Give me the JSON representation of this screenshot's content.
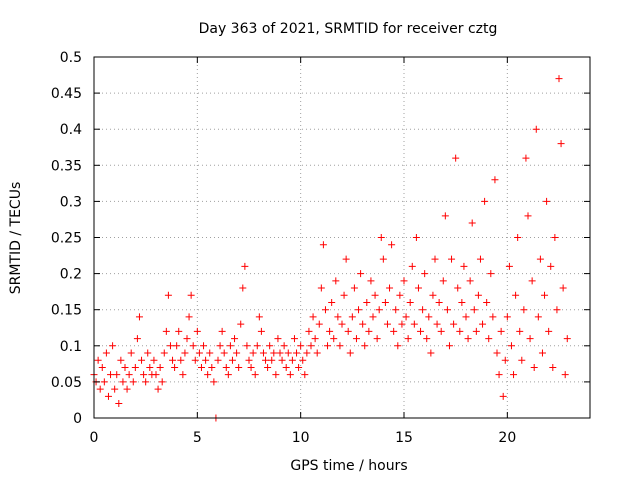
{
  "chart_data": {
    "type": "scatter",
    "title": "Day 363 of 2021, SRMTID for receiver cztg",
    "xlabel": "GPS time / hours",
    "ylabel": "SRMTID / TECUs",
    "xlim": [
      0,
      24
    ],
    "ylim": [
      0,
      0.5
    ],
    "xticks": [
      "0",
      "5",
      "10",
      "15",
      "20"
    ],
    "yticks": [
      "0",
      "0.05",
      "0.1",
      "0.15",
      "0.2",
      "0.25",
      "0.3",
      "0.35",
      "0.4",
      "0.45",
      "0.5"
    ],
    "grid": true,
    "marker": "+",
    "color": "#ff0000",
    "series": [
      {
        "points": [
          [
            0.0,
            0.06
          ],
          [
            0.1,
            0.05
          ],
          [
            0.2,
            0.08
          ],
          [
            0.3,
            0.04
          ],
          [
            0.4,
            0.07
          ],
          [
            0.5,
            0.05
          ],
          [
            0.6,
            0.09
          ],
          [
            0.7,
            0.03
          ],
          [
            0.8,
            0.06
          ],
          [
            0.9,
            0.1
          ],
          [
            1.0,
            0.04
          ],
          [
            1.1,
            0.06
          ],
          [
            1.2,
            0.02
          ],
          [
            1.3,
            0.08
          ],
          [
            1.4,
            0.05
          ],
          [
            1.5,
            0.07
          ],
          [
            1.6,
            0.04
          ],
          [
            1.7,
            0.06
          ],
          [
            1.8,
            0.09
          ],
          [
            1.9,
            0.05
          ],
          [
            2.0,
            0.07
          ],
          [
            2.1,
            0.11
          ],
          [
            2.2,
            0.14
          ],
          [
            2.3,
            0.08
          ],
          [
            2.4,
            0.06
          ],
          [
            2.5,
            0.05
          ],
          [
            2.6,
            0.09
          ],
          [
            2.7,
            0.07
          ],
          [
            2.8,
            0.06
          ],
          [
            2.9,
            0.08
          ],
          [
            3.0,
            0.06
          ],
          [
            3.1,
            0.04
          ],
          [
            3.2,
            0.07
          ],
          [
            3.3,
            0.05
          ],
          [
            3.4,
            0.09
          ],
          [
            3.5,
            0.12
          ],
          [
            3.6,
            0.17
          ],
          [
            3.7,
            0.1
          ],
          [
            3.8,
            0.08
          ],
          [
            3.9,
            0.07
          ],
          [
            4.0,
            0.1
          ],
          [
            4.1,
            0.12
          ],
          [
            4.2,
            0.08
          ],
          [
            4.3,
            0.06
          ],
          [
            4.4,
            0.09
          ],
          [
            4.5,
            0.11
          ],
          [
            4.6,
            0.14
          ],
          [
            4.7,
            0.17
          ],
          [
            4.8,
            0.1
          ],
          [
            4.9,
            0.08
          ],
          [
            5.0,
            0.12
          ],
          [
            5.1,
            0.09
          ],
          [
            5.2,
            0.07
          ],
          [
            5.3,
            0.1
          ],
          [
            5.4,
            0.08
          ],
          [
            5.5,
            0.06
          ],
          [
            5.6,
            0.09
          ],
          [
            5.7,
            0.07
          ],
          [
            5.8,
            0.05
          ],
          [
            5.9,
            0.0
          ],
          [
            6.0,
            0.08
          ],
          [
            6.1,
            0.1
          ],
          [
            6.2,
            0.12
          ],
          [
            6.3,
            0.09
          ],
          [
            6.4,
            0.07
          ],
          [
            6.5,
            0.06
          ],
          [
            6.6,
            0.1
          ],
          [
            6.7,
            0.08
          ],
          [
            6.8,
            0.11
          ],
          [
            6.9,
            0.09
          ],
          [
            7.0,
            0.07
          ],
          [
            7.1,
            0.13
          ],
          [
            7.2,
            0.18
          ],
          [
            7.3,
            0.21
          ],
          [
            7.4,
            0.1
          ],
          [
            7.5,
            0.08
          ],
          [
            7.6,
            0.07
          ],
          [
            7.7,
            0.09
          ],
          [
            7.8,
            0.06
          ],
          [
            7.9,
            0.1
          ],
          [
            8.0,
            0.14
          ],
          [
            8.1,
            0.12
          ],
          [
            8.2,
            0.09
          ],
          [
            8.3,
            0.08
          ],
          [
            8.4,
            0.07
          ],
          [
            8.5,
            0.1
          ],
          [
            8.6,
            0.08
          ],
          [
            8.7,
            0.09
          ],
          [
            8.8,
            0.06
          ],
          [
            8.9,
            0.11
          ],
          [
            9.0,
            0.09
          ],
          [
            9.1,
            0.08
          ],
          [
            9.2,
            0.1
          ],
          [
            9.3,
            0.07
          ],
          [
            9.4,
            0.09
          ],
          [
            9.5,
            0.06
          ],
          [
            9.6,
            0.08
          ],
          [
            9.7,
            0.11
          ],
          [
            9.8,
            0.09
          ],
          [
            9.9,
            0.07
          ],
          [
            10.0,
            0.1
          ],
          [
            10.1,
            0.08
          ],
          [
            10.2,
            0.06
          ],
          [
            10.3,
            0.09
          ],
          [
            10.4,
            0.12
          ],
          [
            10.5,
            0.1
          ],
          [
            10.6,
            0.14
          ],
          [
            10.7,
            0.11
          ],
          [
            10.8,
            0.09
          ],
          [
            10.9,
            0.13
          ],
          [
            11.0,
            0.18
          ],
          [
            11.1,
            0.24
          ],
          [
            11.2,
            0.15
          ],
          [
            11.3,
            0.1
          ],
          [
            11.4,
            0.12
          ],
          [
            11.5,
            0.16
          ],
          [
            11.6,
            0.11
          ],
          [
            11.7,
            0.19
          ],
          [
            11.8,
            0.14
          ],
          [
            11.9,
            0.1
          ],
          [
            12.0,
            0.13
          ],
          [
            12.1,
            0.17
          ],
          [
            12.2,
            0.22
          ],
          [
            12.3,
            0.12
          ],
          [
            12.4,
            0.09
          ],
          [
            12.5,
            0.14
          ],
          [
            12.6,
            0.18
          ],
          [
            12.7,
            0.11
          ],
          [
            12.8,
            0.15
          ],
          [
            12.9,
            0.2
          ],
          [
            13.0,
            0.13
          ],
          [
            13.1,
            0.1
          ],
          [
            13.2,
            0.16
          ],
          [
            13.3,
            0.12
          ],
          [
            13.4,
            0.19
          ],
          [
            13.5,
            0.14
          ],
          [
            13.6,
            0.17
          ],
          [
            13.7,
            0.11
          ],
          [
            13.8,
            0.15
          ],
          [
            13.9,
            0.25
          ],
          [
            14.0,
            0.22
          ],
          [
            14.1,
            0.16
          ],
          [
            14.2,
            0.13
          ],
          [
            14.3,
            0.18
          ],
          [
            14.4,
            0.24
          ],
          [
            14.5,
            0.12
          ],
          [
            14.6,
            0.15
          ],
          [
            14.7,
            0.1
          ],
          [
            14.8,
            0.17
          ],
          [
            14.9,
            0.13
          ],
          [
            15.0,
            0.19
          ],
          [
            15.1,
            0.14
          ],
          [
            15.2,
            0.11
          ],
          [
            15.3,
            0.16
          ],
          [
            15.4,
            0.21
          ],
          [
            15.5,
            0.13
          ],
          [
            15.6,
            0.25
          ],
          [
            15.7,
            0.18
          ],
          [
            15.8,
            0.12
          ],
          [
            15.9,
            0.15
          ],
          [
            16.0,
            0.2
          ],
          [
            16.1,
            0.11
          ],
          [
            16.2,
            0.14
          ],
          [
            16.3,
            0.09
          ],
          [
            16.4,
            0.17
          ],
          [
            16.5,
            0.22
          ],
          [
            16.6,
            0.13
          ],
          [
            16.7,
            0.16
          ],
          [
            16.8,
            0.12
          ],
          [
            16.9,
            0.19
          ],
          [
            17.0,
            0.28
          ],
          [
            17.1,
            0.15
          ],
          [
            17.2,
            0.1
          ],
          [
            17.3,
            0.22
          ],
          [
            17.4,
            0.13
          ],
          [
            17.5,
            0.36
          ],
          [
            17.6,
            0.18
          ],
          [
            17.7,
            0.12
          ],
          [
            17.8,
            0.16
          ],
          [
            17.9,
            0.21
          ],
          [
            18.0,
            0.14
          ],
          [
            18.1,
            0.11
          ],
          [
            18.2,
            0.19
          ],
          [
            18.3,
            0.27
          ],
          [
            18.4,
            0.15
          ],
          [
            18.5,
            0.12
          ],
          [
            18.6,
            0.17
          ],
          [
            18.7,
            0.22
          ],
          [
            18.8,
            0.13
          ],
          [
            18.9,
            0.3
          ],
          [
            19.0,
            0.16
          ],
          [
            19.1,
            0.11
          ],
          [
            19.2,
            0.2
          ],
          [
            19.3,
            0.14
          ],
          [
            19.4,
            0.33
          ],
          [
            19.5,
            0.09
          ],
          [
            19.6,
            0.06
          ],
          [
            19.7,
            0.12
          ],
          [
            19.8,
            0.03
          ],
          [
            19.9,
            0.08
          ],
          [
            20.0,
            0.14
          ],
          [
            20.1,
            0.21
          ],
          [
            20.2,
            0.1
          ],
          [
            20.3,
            0.06
          ],
          [
            20.4,
            0.17
          ],
          [
            20.5,
            0.25
          ],
          [
            20.6,
            0.12
          ],
          [
            20.7,
            0.08
          ],
          [
            20.8,
            0.15
          ],
          [
            20.9,
            0.36
          ],
          [
            21.0,
            0.28
          ],
          [
            21.1,
            0.11
          ],
          [
            21.2,
            0.19
          ],
          [
            21.3,
            0.07
          ],
          [
            21.4,
            0.4
          ],
          [
            21.5,
            0.14
          ],
          [
            21.6,
            0.22
          ],
          [
            21.7,
            0.09
          ],
          [
            21.8,
            0.17
          ],
          [
            21.9,
            0.3
          ],
          [
            22.0,
            0.12
          ],
          [
            22.1,
            0.21
          ],
          [
            22.2,
            0.07
          ],
          [
            22.3,
            0.25
          ],
          [
            22.4,
            0.15
          ],
          [
            22.5,
            0.47
          ],
          [
            22.6,
            0.38
          ],
          [
            22.7,
            0.18
          ],
          [
            22.8,
            0.06
          ],
          [
            22.9,
            0.11
          ]
        ]
      }
    ]
  }
}
